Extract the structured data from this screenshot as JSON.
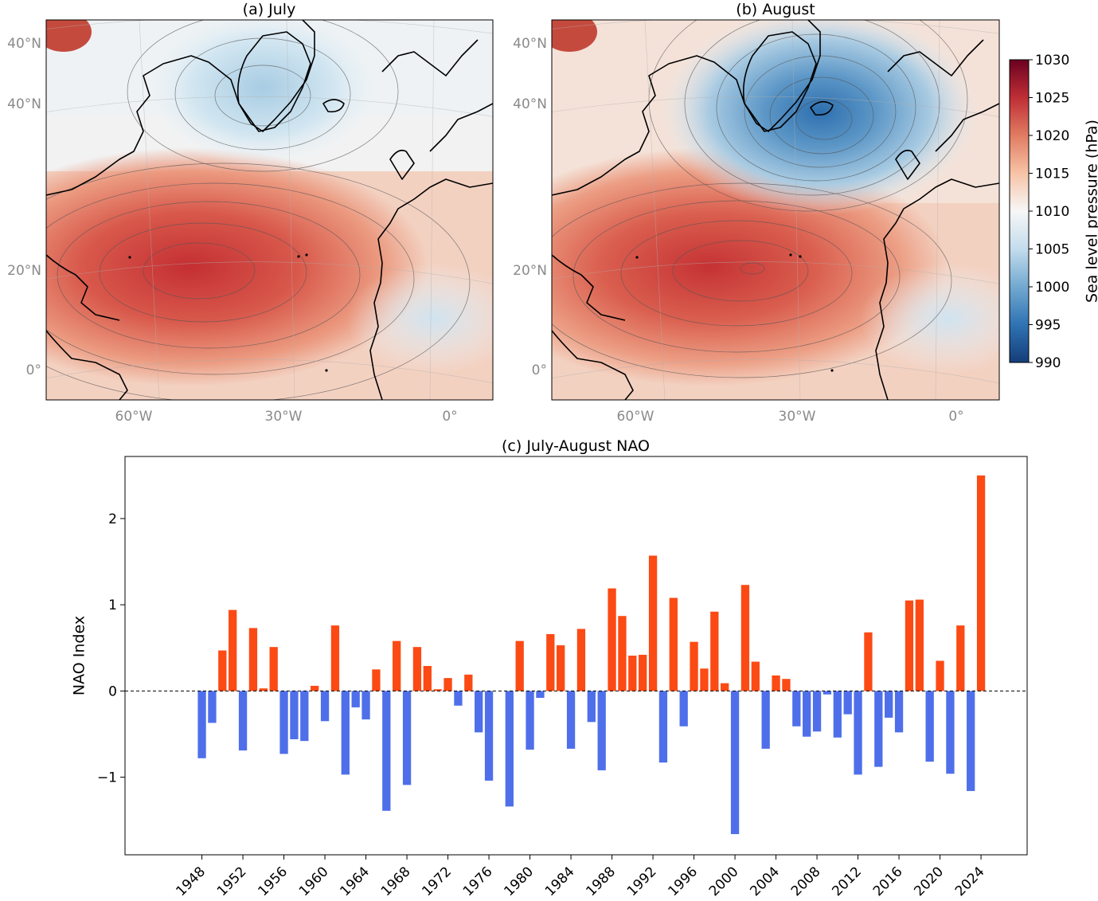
{
  "chart_data": [
    {
      "type": "heatmap",
      "title": "(a) July",
      "lat_labels": [
        "40°N",
        "40°N",
        "20°N",
        "0°"
      ],
      "lon_labels": [
        "60°W",
        "30°W",
        "0°"
      ],
      "colorbar": "shared"
    },
    {
      "type": "heatmap",
      "title": "(b) August",
      "lat_labels": [
        "40°N",
        "40°N",
        "20°N",
        "0°"
      ],
      "lon_labels": [
        "60°W",
        "30°W",
        "0°"
      ],
      "colorbar": {
        "label": "Sea level pressure (hPa)",
        "ticks": [
          "1030",
          "1025",
          "1020",
          "1015",
          "1010",
          "1005",
          "1000",
          "995",
          "990"
        ],
        "range": [
          990,
          1030
        ],
        "colors": [
          "#153d7a",
          "#2f73b3",
          "#72a9d0",
          "#c3dcec",
          "#f7f7f7",
          "#f7c3a6",
          "#e07c62",
          "#bf2e35",
          "#6b0120"
        ]
      }
    },
    {
      "type": "bar",
      "title": "(c) July-August NAO",
      "ylabel": "NAO Index",
      "xlabel": "",
      "ylim": [
        -1.9,
        2.72
      ],
      "yticks": [
        -1,
        0,
        1,
        2
      ],
      "ytick_labels": [
        "−1",
        "0",
        "1",
        "2"
      ],
      "xticks": [
        1948,
        1952,
        1956,
        1960,
        1964,
        1968,
        1972,
        1976,
        1980,
        1984,
        1988,
        1992,
        1996,
        2000,
        2004,
        2008,
        2012,
        2016,
        2020,
        2024
      ],
      "xtick_labels": [
        "1948",
        "1952",
        "1956",
        "1960",
        "1964",
        "1968",
        "1972",
        "1976",
        "1980",
        "1984",
        "1988",
        "1992",
        "1996",
        "2000",
        "2004",
        "2008",
        "2012",
        "2016",
        "2020",
        "2024"
      ],
      "positive_color": "#fc4a14",
      "negative_color": "#4f6fea",
      "x": [
        1948,
        1949,
        1950,
        1951,
        1952,
        1953,
        1954,
        1955,
        1956,
        1957,
        1958,
        1959,
        1960,
        1961,
        1962,
        1963,
        1964,
        1965,
        1966,
        1967,
        1968,
        1969,
        1970,
        1971,
        1972,
        1973,
        1974,
        1975,
        1976,
        1977,
        1978,
        1979,
        1980,
        1981,
        1982,
        1983,
        1984,
        1985,
        1986,
        1987,
        1988,
        1989,
        1990,
        1991,
        1992,
        1993,
        1994,
        1995,
        1996,
        1997,
        1998,
        1999,
        2000,
        2001,
        2002,
        2003,
        2004,
        2005,
        2006,
        2007,
        2008,
        2009,
        2010,
        2011,
        2012,
        2013,
        2014,
        2015,
        2016,
        2017,
        2018,
        2019,
        2020,
        2021,
        2022,
        2023,
        2024
      ],
      "values": [
        -0.78,
        -0.37,
        0.47,
        0.94,
        -0.69,
        0.73,
        0.03,
        0.51,
        -0.73,
        -0.56,
        -0.58,
        0.06,
        -0.35,
        0.76,
        -0.97,
        -0.19,
        -0.33,
        0.25,
        -1.39,
        0.58,
        -1.09,
        0.51,
        0.29,
        0.02,
        0.15,
        -0.17,
        0.19,
        -0.48,
        -1.04,
        0,
        -1.34,
        0.58,
        -0.68,
        -0.08,
        0.66,
        0.53,
        -0.67,
        0.72,
        -0.36,
        -0.92,
        1.19,
        0.87,
        0.41,
        0.42,
        1.57,
        -0.83,
        1.08,
        -0.41,
        0.57,
        0.26,
        0.92,
        0.09,
        -1.66,
        1.23,
        0.34,
        -0.67,
        0.18,
        0.14,
        -0.41,
        -0.53,
        -0.47,
        -0.04,
        -0.54,
        -0.27,
        -0.97,
        0.68,
        -0.88,
        -0.31,
        -0.48,
        1.05,
        1.06,
        -0.82,
        0.35,
        -0.96,
        0.76,
        -1.16,
        2.5
      ]
    }
  ]
}
